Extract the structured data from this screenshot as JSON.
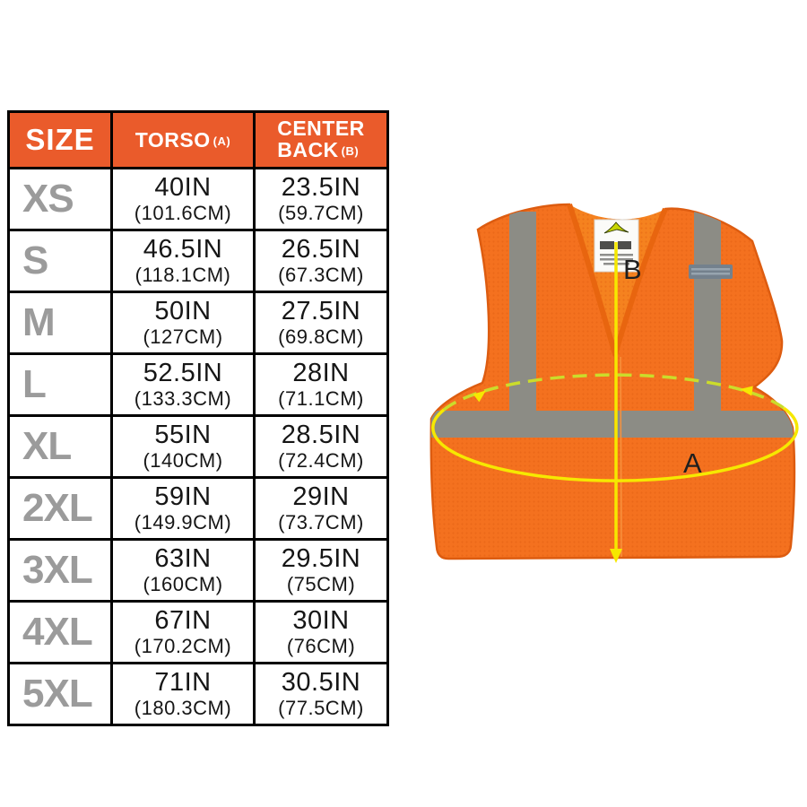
{
  "table": {
    "headers": {
      "size": "SIZE",
      "torso_label": "TORSO",
      "torso_sub": "(A)",
      "center_back_line1": "CENTER",
      "center_back_line2": "BACK",
      "center_back_sub": "(B)"
    },
    "rows": [
      {
        "size": "XS",
        "torso_in": "40IN",
        "torso_cm": "(101.6CM)",
        "back_in": "23.5IN",
        "back_cm": "(59.7CM)"
      },
      {
        "size": "S",
        "torso_in": "46.5IN",
        "torso_cm": "(118.1CM)",
        "back_in": "26.5IN",
        "back_cm": "(67.3CM)"
      },
      {
        "size": "M",
        "torso_in": "50IN",
        "torso_cm": "(127CM)",
        "back_in": "27.5IN",
        "back_cm": "(69.8CM)"
      },
      {
        "size": "L",
        "torso_in": "52.5IN",
        "torso_cm": "(133.3CM)",
        "back_in": "28IN",
        "back_cm": "(71.1CM)"
      },
      {
        "size": "XL",
        "torso_in": "55IN",
        "torso_cm": "(140CM)",
        "back_in": "28.5IN",
        "back_cm": "(72.4CM)"
      },
      {
        "size": "2XL",
        "torso_in": "59IN",
        "torso_cm": "(149.9CM)",
        "back_in": "29IN",
        "back_cm": "(73.7CM)"
      },
      {
        "size": "3XL",
        "torso_in": "63IN",
        "torso_cm": "(160CM)",
        "back_in": "29.5IN",
        "back_cm": "(75CM)"
      },
      {
        "size": "4XL",
        "torso_in": "67IN",
        "torso_cm": "(170.2CM)",
        "back_in": "30IN",
        "back_cm": "(76CM)"
      },
      {
        "size": "5XL",
        "torso_in": "71IN",
        "torso_cm": "(180.3CM)",
        "back_in": "30.5IN",
        "back_cm": "(77.5CM)"
      }
    ],
    "colors": {
      "header_bg": "#EA5B2B",
      "header_text": "#FFFFFF",
      "size_letter": "#9B9B9B",
      "value_text": "#161616",
      "border": "#000000"
    }
  },
  "diagram": {
    "label_a": "A",
    "label_b": "B",
    "colors": {
      "vest_orange": "#F4711F",
      "vest_shade": "#E05C0F",
      "reflective_stripe": "#8C8C85",
      "measure_solid_yellow": "#F6E800",
      "measure_dash_yellow": "#CBDC2B",
      "velcro_gray": "#74818D",
      "tag_logo_green": "#C8D501"
    }
  }
}
